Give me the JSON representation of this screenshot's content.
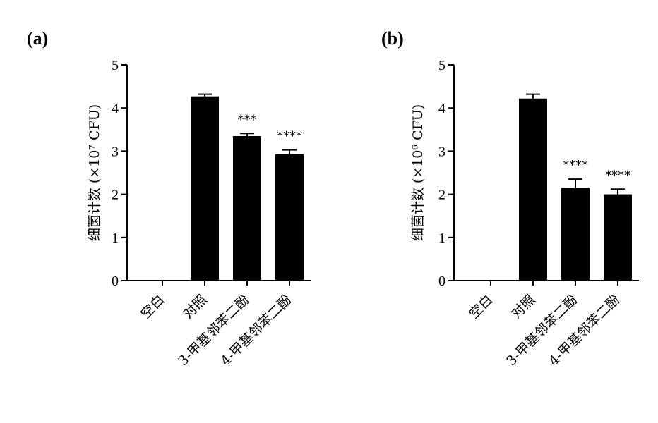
{
  "colors": {
    "bar": "#000000",
    "axis": "#000000",
    "background": "#ffffff"
  },
  "chart_data": [
    {
      "type": "bar",
      "panel_label": "(a)",
      "ylabel": "细菌计数 (×10⁷ CFU)",
      "ylim": [
        0,
        5
      ],
      "yticks": [
        "0",
        "1",
        "2",
        "3",
        "4",
        "5"
      ],
      "categories": [
        "空白",
        "对照",
        "3-甲基邻苯二酚",
        "4-甲基邻苯二酚"
      ],
      "values": [
        0,
        4.27,
        3.35,
        2.93
      ],
      "errors": [
        0,
        0.05,
        0.06,
        0.1
      ],
      "significance": [
        "",
        "",
        "***",
        "****"
      ],
      "grid": false
    },
    {
      "type": "bar",
      "panel_label": "(b)",
      "ylabel": "细菌计数 (×10⁶ CFU)",
      "ylim": [
        0,
        5
      ],
      "yticks": [
        "0",
        "1",
        "2",
        "3",
        "4",
        "5"
      ],
      "categories": [
        "空白",
        "对照",
        "3-甲基邻苯二酚",
        "4-甲基邻苯二酚"
      ],
      "values": [
        0,
        4.22,
        2.15,
        2.0
      ],
      "errors": [
        0,
        0.1,
        0.2,
        0.12
      ],
      "significance": [
        "",
        "",
        "****",
        "****"
      ],
      "grid": false
    }
  ]
}
